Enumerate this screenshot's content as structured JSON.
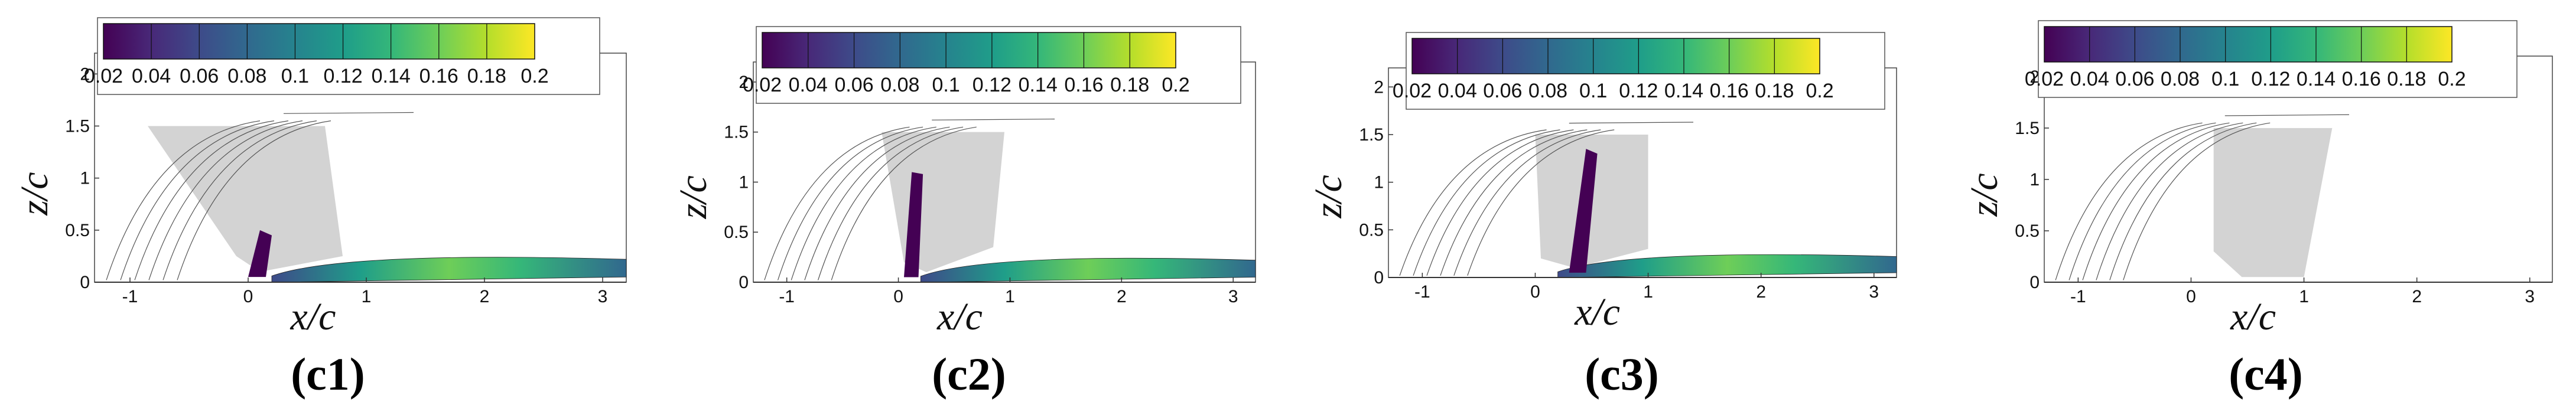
{
  "figure": {
    "panels": [
      {
        "id": "c1",
        "label": "(c1)",
        "xlabel": "x/c",
        "ylabel": "z/c"
      },
      {
        "id": "c2",
        "label": "(c2)",
        "xlabel": "x/c",
        "ylabel": "z/c"
      },
      {
        "id": "c3",
        "label": "(c3)",
        "xlabel": "x/c",
        "ylabel": "z/c"
      },
      {
        "id": "c4",
        "label": "(c4)",
        "xlabel": "x/c",
        "ylabel": "z/c"
      }
    ],
    "colorbar_ticks": [
      "0.02",
      "0.04",
      "0.06",
      "0.08",
      "0.1",
      "0.12",
      "0.14",
      "0.16",
      "0.18",
      "0.2"
    ],
    "colormap": [
      "#440154",
      "#482878",
      "#3e4a89",
      "#31688e",
      "#26828e",
      "#1f9e89",
      "#35b779",
      "#6ece58",
      "#b5de2b",
      "#fde725"
    ],
    "shading_color": "#d3d3d3"
  },
  "chart_data": [
    {
      "type": "heatmap",
      "panel": "(c1)",
      "xlabel": "x/c",
      "ylabel": "z/c",
      "xlim": [
        -1.3,
        3.2
      ],
      "ylim": [
        0,
        2.2
      ],
      "x_ticks": [
        "-1",
        "0",
        "1",
        "2",
        "3"
      ],
      "y_ticks": [
        "0",
        "0.5",
        "1",
        "1.5",
        "2"
      ],
      "colorbar": {
        "range": [
          0.02,
          0.2
        ],
        "ticks": [
          0.02,
          0.04,
          0.06,
          0.08,
          0.1,
          0.12,
          0.14,
          0.16,
          0.18,
          0.2
        ]
      }
    },
    {
      "type": "heatmap",
      "panel": "(c2)",
      "xlabel": "x/c",
      "ylabel": "z/c",
      "xlim": [
        -1.3,
        3.2
      ],
      "ylim": [
        0,
        2.2
      ],
      "x_ticks": [
        "-1",
        "0",
        "1",
        "2",
        "3"
      ],
      "y_ticks": [
        "0",
        "0.5",
        "1",
        "1.5",
        "2"
      ],
      "colorbar": {
        "range": [
          0.02,
          0.2
        ],
        "ticks": [
          0.02,
          0.04,
          0.06,
          0.08,
          0.1,
          0.12,
          0.14,
          0.16,
          0.18,
          0.2
        ]
      }
    },
    {
      "type": "heatmap",
      "panel": "(c3)",
      "xlabel": "x/c",
      "ylabel": "z/c",
      "xlim": [
        -1.3,
        3.2
      ],
      "ylim": [
        0,
        2.2
      ],
      "x_ticks": [
        "-1",
        "0",
        "1",
        "2",
        "3"
      ],
      "y_ticks": [
        "0",
        "0.5",
        "1",
        "1.5",
        "2"
      ],
      "colorbar": {
        "range": [
          0.02,
          0.2
        ],
        "ticks": [
          0.02,
          0.04,
          0.06,
          0.08,
          0.1,
          0.12,
          0.14,
          0.16,
          0.18,
          0.2
        ]
      }
    },
    {
      "type": "heatmap",
      "panel": "(c4)",
      "xlabel": "x/c",
      "ylabel": "z/c",
      "xlim": [
        -1.3,
        3.2
      ],
      "ylim": [
        0,
        2.2
      ],
      "x_ticks": [
        "-1",
        "0",
        "1",
        "2",
        "3"
      ],
      "y_ticks": [
        "0",
        "0.5",
        "1",
        "1.5",
        "2"
      ],
      "colorbar": {
        "range": [
          0.02,
          0.2
        ],
        "ticks": [
          0.02,
          0.04,
          0.06,
          0.08,
          0.1,
          0.12,
          0.14,
          0.16,
          0.18,
          0.2
        ]
      }
    }
  ]
}
